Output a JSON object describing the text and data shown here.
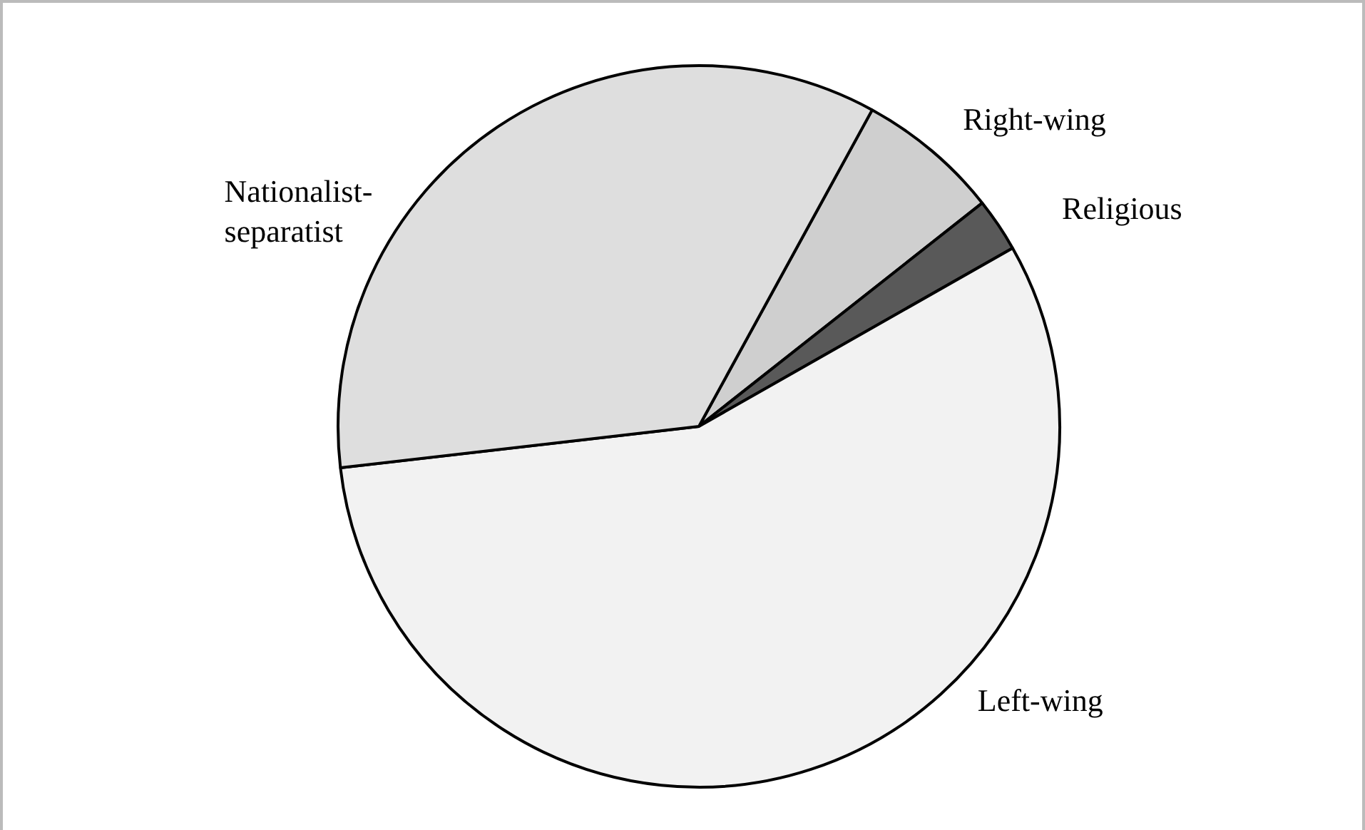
{
  "chart_data": {
    "type": "pie",
    "categories": [
      "Right-wing",
      "Religious",
      "Left-wing",
      "Nationalist-separatist"
    ],
    "values": [
      6.4,
      2.4,
      56.4,
      34.8
    ],
    "colors": [
      "#cfcfcf",
      "#595959",
      "#f2f2f2",
      "#dedede"
    ],
    "legend": false
  }
}
